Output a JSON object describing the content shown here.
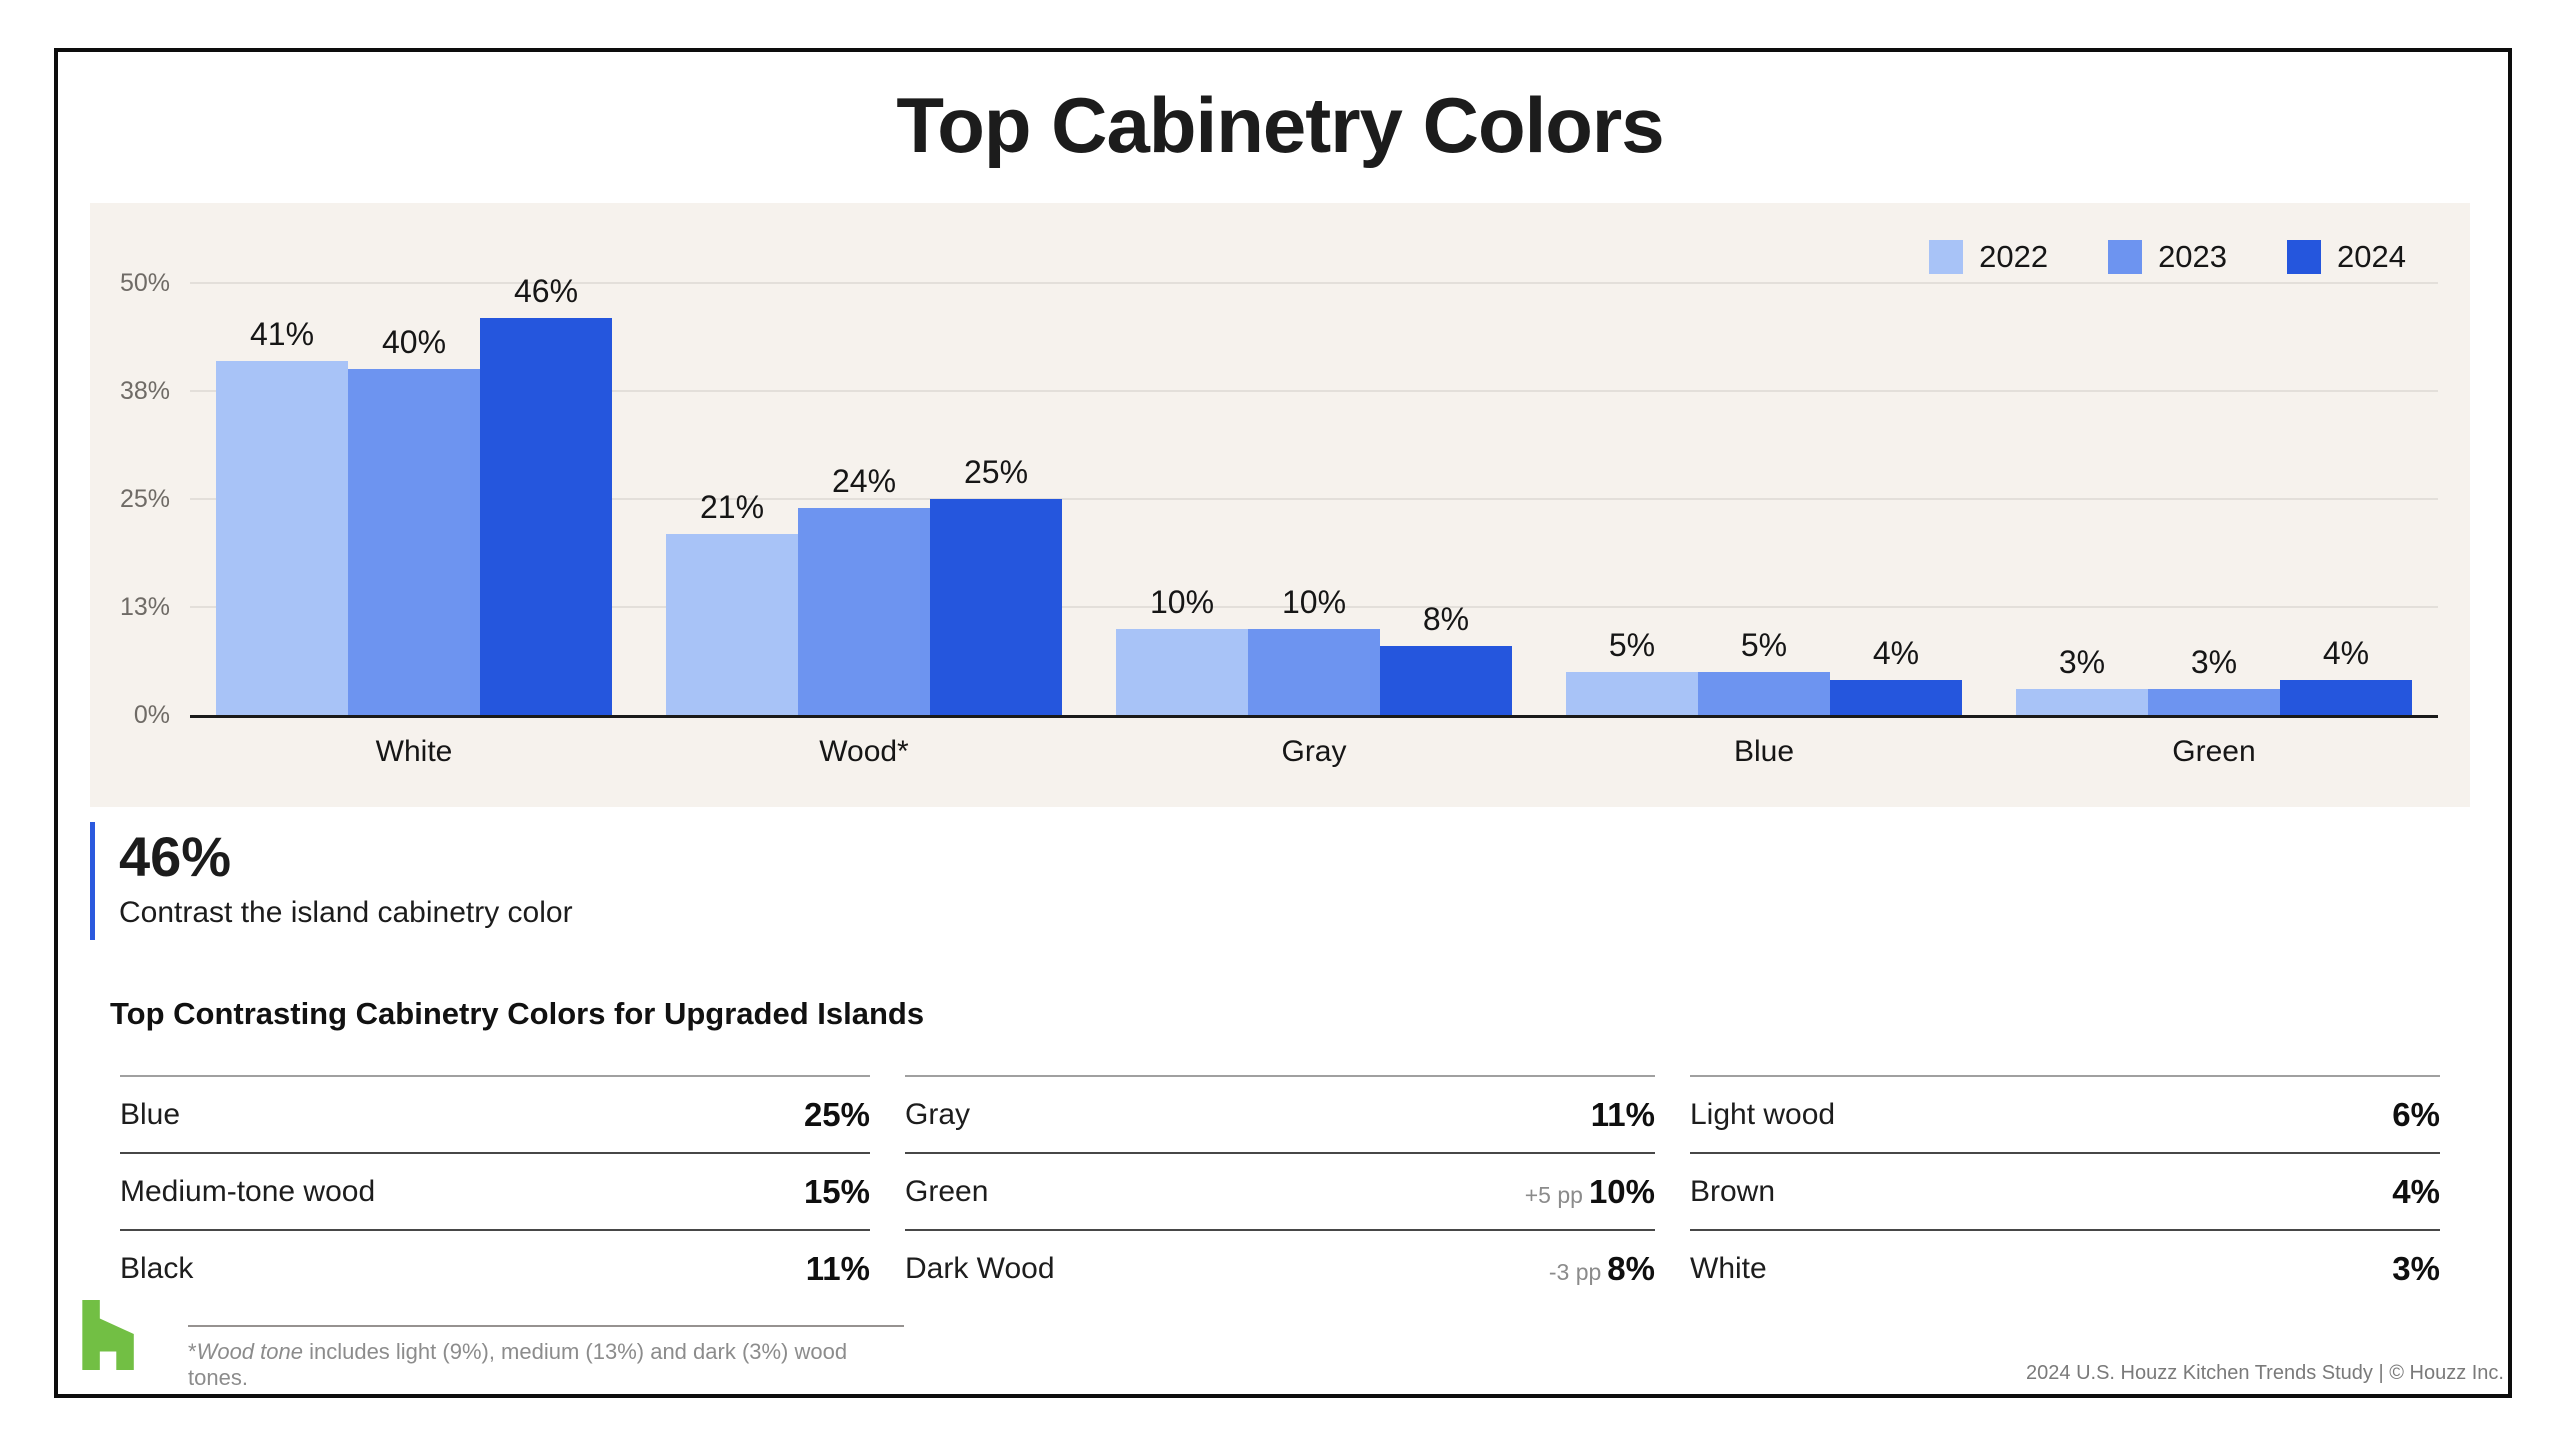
{
  "title": "Top Cabinetry Colors",
  "colors": {
    "series_2022": "#a8c3f7",
    "series_2023": "#6d94f0",
    "series_2024": "#2556dd",
    "accent": "#2b59de",
    "houzz_green": "#72bf44",
    "panel_bg": "#f6f2ed"
  },
  "chart_data": {
    "type": "bar",
    "title": "Top Cabinetry Colors",
    "categories": [
      "White",
      "Wood*",
      "Gray",
      "Blue",
      "Green"
    ],
    "series": [
      {
        "name": "2022",
        "color": "#a8c3f7",
        "values": [
          41,
          21,
          10,
          5,
          3
        ]
      },
      {
        "name": "2023",
        "color": "#6d94f0",
        "values": [
          40,
          24,
          10,
          5,
          3
        ]
      },
      {
        "name": "2024",
        "color": "#2556dd",
        "values": [
          46,
          25,
          8,
          4,
          4
        ]
      }
    ],
    "value_suffix": "%",
    "ylim": [
      0,
      50
    ],
    "yticks": [
      {
        "value": 0,
        "label": "0%"
      },
      {
        "value": 12.5,
        "label": "13%"
      },
      {
        "value": 25,
        "label": "25%"
      },
      {
        "value": 37.5,
        "label": "38%"
      },
      {
        "value": 50,
        "label": "50%"
      }
    ],
    "legend_position": "top-right",
    "grid": true
  },
  "callout": {
    "value": "46%",
    "text": "Contrast the island cabinetry color"
  },
  "islands": {
    "heading": "Top Contrasting Cabinetry Colors for Upgraded Islands",
    "columns": [
      {
        "rows": [
          {
            "label": "Blue",
            "value": "25%"
          },
          {
            "label": "Medium-tone wood",
            "value": "15%"
          },
          {
            "label": "Black",
            "value": "11%"
          }
        ]
      },
      {
        "rows": [
          {
            "label": "Gray",
            "value": "11%"
          },
          {
            "label": "Green",
            "note": "+5 pp",
            "value": "10%"
          },
          {
            "label": "Dark Wood",
            "note": "-3 pp",
            "value": "8%"
          }
        ]
      },
      {
        "rows": [
          {
            "label": "Light wood",
            "value": "6%"
          },
          {
            "label": "Brown",
            "value": "4%"
          },
          {
            "label": "White",
            "value": "3%"
          }
        ]
      }
    ]
  },
  "footnote": {
    "marker": "*",
    "term": "Wood tone",
    "rest": " includes light (9%), medium (13%) and dark (3%) wood tones."
  },
  "footer": {
    "credit": "2024 U.S. Houzz Kitchen Trends Study | © Houzz Inc."
  }
}
